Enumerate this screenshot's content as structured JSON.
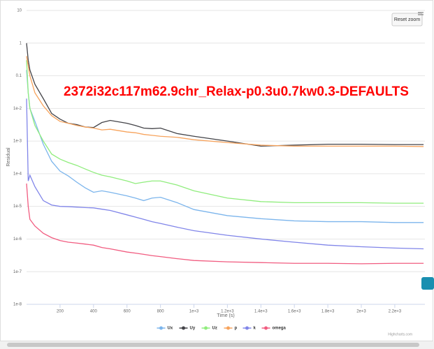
{
  "chart_data": {
    "type": "line",
    "title": "2372i32c117m62.9chr_Relax-p0.3u0.7kw0.3-DEFAULTS",
    "xlabel": "Time (s)",
    "ylabel": "Residual",
    "reset_button": "Reset zoom",
    "credits": "Highcharts.com",
    "log_y": true,
    "grid": true,
    "x": [
      0,
      10,
      20,
      50,
      100,
      150,
      200,
      250,
      300,
      350,
      400,
      450,
      500,
      600,
      650,
      700,
      750,
      800,
      900,
      1000,
      1200,
      1400,
      1600,
      1800,
      2000,
      2200,
      2372
    ],
    "xlim": [
      0,
      2380
    ],
    "xticks": [
      200,
      400,
      600,
      800,
      {
        "value": 1000,
        "label": "1e+3"
      },
      {
        "value": 1200,
        "label": "1.2e+3"
      },
      {
        "value": 1400,
        "label": "1.4e+3"
      },
      {
        "value": 1600,
        "label": "1.6e+3"
      },
      {
        "value": 1800,
        "label": "1.8e+3"
      },
      {
        "value": 2000,
        "label": "2e+3"
      },
      {
        "value": 2200,
        "label": "2.2e+3"
      }
    ],
    "ylim": [
      1e-08,
      10
    ],
    "yticks": [
      10,
      1,
      0.1,
      {
        "value": 0.01,
        "label": "1e-2"
      },
      {
        "value": 0.001,
        "label": "1e-3"
      },
      {
        "value": 0.0001,
        "label": "1e-4"
      },
      {
        "value": 1e-05,
        "label": "1e-5"
      },
      {
        "value": 1e-06,
        "label": "1e-6"
      },
      {
        "value": 1e-07,
        "label": "1e-7"
      },
      {
        "value": 1e-08,
        "label": "1e-8"
      }
    ],
    "series": [
      {
        "name": "Ux",
        "color": "#7cb5ec",
        "values": [
          0.15,
          0.03,
          0.01,
          0.004,
          0.0008,
          0.00024,
          0.00012,
          8.5e-05,
          5.5e-05,
          3.7e-05,
          2.7e-05,
          3e-05,
          2.7e-05,
          2.1e-05,
          1.8e-05,
          1.5e-05,
          1.8e-05,
          1.9e-05,
          1.3e-05,
          8e-06,
          5.2e-06,
          4.2e-06,
          3.6e-06,
          3.4e-06,
          3.4e-06,
          3.2e-06,
          3.2e-06
        ]
      },
      {
        "name": "Uy",
        "color": "#434348",
        "values": [
          1,
          0.3,
          0.15,
          0.055,
          0.02,
          0.007,
          0.0047,
          0.0035,
          0.0032,
          0.0027,
          0.0026,
          0.0037,
          0.0043,
          0.0035,
          0.003,
          0.0025,
          0.0024,
          0.0025,
          0.0017,
          0.0014,
          0.001,
          0.0007,
          0.00075,
          0.0008,
          0.0008,
          0.00078,
          0.00078
        ]
      },
      {
        "name": "Uz",
        "color": "#90ed7d",
        "values": [
          0.3,
          0.03,
          0.01,
          0.003,
          0.001,
          0.0004,
          0.00028,
          0.00022,
          0.00018,
          0.00014,
          0.00011,
          9e-05,
          8e-05,
          6e-05,
          5e-05,
          5.5e-05,
          6e-05,
          6e-05,
          4.5e-05,
          3e-05,
          1.8e-05,
          1.4e-05,
          1.3e-05,
          1.3e-05,
          1.3e-05,
          1.25e-05,
          1.25e-05
        ]
      },
      {
        "name": "p",
        "color": "#f7a35c",
        "values": [
          0.4,
          0.2,
          0.1,
          0.03,
          0.012,
          0.006,
          0.004,
          0.0035,
          0.003,
          0.0027,
          0.0025,
          0.0022,
          0.0023,
          0.0019,
          0.0018,
          0.0016,
          0.0015,
          0.0014,
          0.0013,
          0.0011,
          0.0009,
          0.00075,
          0.0007,
          0.0007,
          0.0007,
          0.0007,
          0.00068
        ]
      },
      {
        "name": "k",
        "color": "#8085e9",
        "values": [
          0.02,
          6e-05,
          9e-05,
          4e-05,
          1.5e-05,
          1.1e-05,
          1e-05,
          9.8e-06,
          9.5e-06,
          9.2e-06,
          9e-06,
          8.2e-06,
          7.5e-06,
          5.5e-06,
          4.7e-06,
          4e-06,
          3.4e-06,
          3e-06,
          2.3e-06,
          1.8e-06,
          1.3e-06,
          1e-06,
          8e-07,
          6.5e-07,
          5.8e-07,
          5.3e-07,
          5e-07
        ]
      },
      {
        "name": "omega",
        "color": "#f15c80",
        "values": [
          5e-05,
          1e-05,
          4e-06,
          2.5e-06,
          1.5e-06,
          1.1e-06,
          9e-07,
          8e-07,
          7.5e-07,
          7e-07,
          6.5e-07,
          5.5e-07,
          5e-07,
          4e-07,
          3.7e-07,
          3.4e-07,
          3.1e-07,
          2.9e-07,
          2.5e-07,
          2.2e-07,
          2e-07,
          1.9e-07,
          1.8e-07,
          1.8e-07,
          1.75e-07,
          1.8e-07,
          1.8e-07
        ]
      }
    ]
  }
}
